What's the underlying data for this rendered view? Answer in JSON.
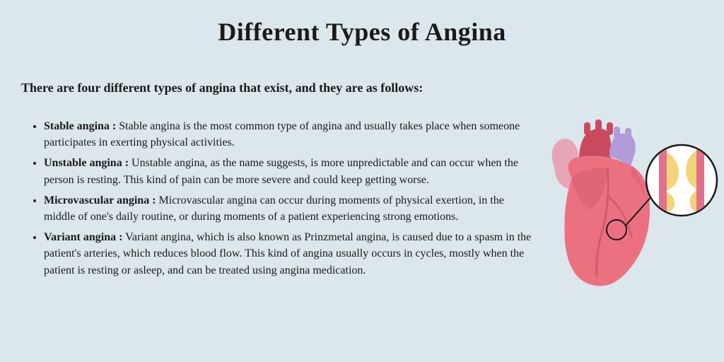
{
  "title": "Different Types of Angina",
  "intro": "There are four different types of angina that exist, and they are as follows:",
  "items": [
    {
      "term": "Stable angina :",
      "desc": " Stable angina is the most common type of angina and usually takes place when someone participates in exerting physical activities."
    },
    {
      "term": "Unstable angina :",
      "desc": " Unstable angina, as the name suggests, is more unpredictable and can occur when the person is resting. This kind of pain can be more severe and could keep getting worse."
    },
    {
      "term": "Microvascular angina :",
      "desc": " Microvascular angina can occur during moments of physical exertion, in the middle of one's daily routine, or during moments of a patient experiencing strong emotions."
    },
    {
      "term": "Variant angina :",
      "desc": "  Variant angina, which is also known as Prinzmetal angina, is caused due to a spasm in the patient's arteries, which reduces blood flow. This kind of angina usually occurs in cycles, mostly when the patient is resting or asleep, and can be treated using angina medication."
    }
  ],
  "typography": {
    "title_size": 36,
    "intro_size": 18,
    "body_size": 16,
    "line_height": 1.45
  },
  "colors": {
    "background": "#dce6ed",
    "text": "#1a1a1a",
    "heart_body": "#eb7181",
    "heart_shadow": "#d15b6d",
    "vessel_blue": "#b19cd9",
    "vessel_pink": "#e8a5b8",
    "vessel_red": "#c94a5e",
    "plaque": "#f4d47a",
    "artery_wall": "#e0718a",
    "circle_fill": "#ffffff",
    "stroke": "#1a1a1a"
  }
}
